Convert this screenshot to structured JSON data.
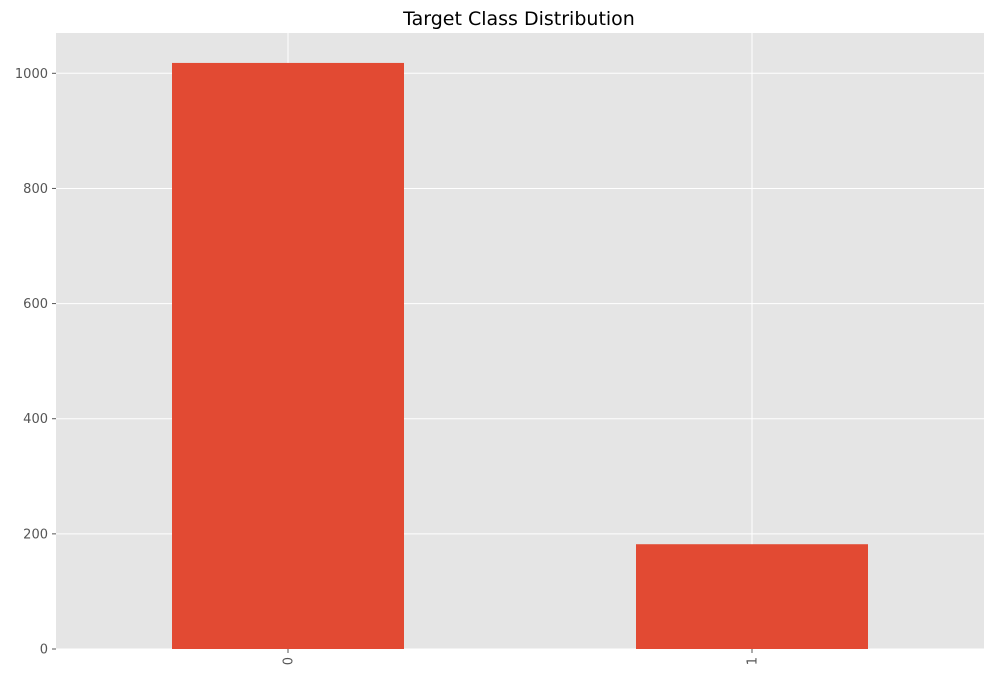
{
  "chart_data": {
    "type": "bar",
    "title": "Target Class Distribution",
    "xlabel": "",
    "ylabel": "",
    "categories": [
      "0",
      "1"
    ],
    "values": [
      1018,
      182
    ],
    "ylim": [
      0,
      1070
    ],
    "yticks": [
      0,
      200,
      400,
      600,
      800,
      1000
    ],
    "grid": true,
    "x_tick_rotation": "vertical",
    "colors": {
      "bar": "#E24A33",
      "plot_background": "#E5E5E5",
      "grid": "#FFFFFF",
      "tick_text": "#555555"
    }
  }
}
